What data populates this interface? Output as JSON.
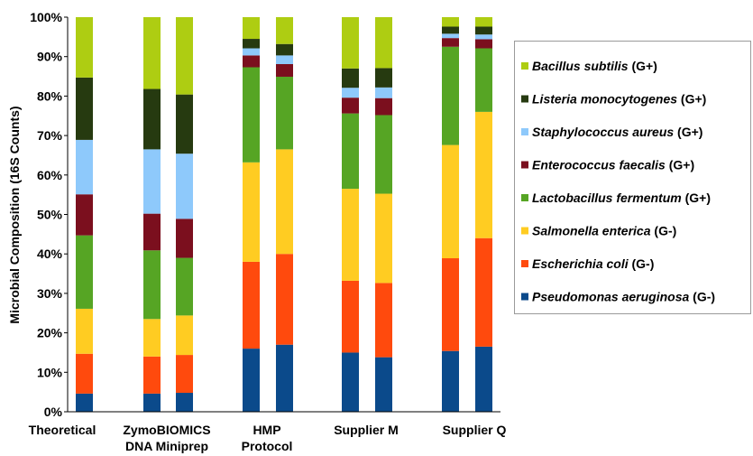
{
  "chart_data": {
    "type": "bar",
    "stacked": true,
    "ylabel": "Microbial Composition (16S Counts)",
    "ylim": [
      0,
      100
    ],
    "y_ticks": [
      "0%",
      "10%",
      "20%",
      "30%",
      "40%",
      "50%",
      "60%",
      "70%",
      "80%",
      "90%",
      "100%"
    ],
    "grid": false,
    "legend_position": "right",
    "groups": [
      {
        "label_lines": [
          "Theoretical"
        ],
        "bars": [
          "Theoretical"
        ]
      },
      {
        "label_lines": [
          "ZymoBIOMICS",
          "DNA Miniprep"
        ],
        "bars": [
          "ZymoBIOMICS DNA Miniprep 1",
          "ZymoBIOMICS DNA Miniprep 2"
        ]
      },
      {
        "label_lines": [
          "HMP",
          "Protocol"
        ],
        "bars": [
          "HMP Protocol 1",
          "HMP Protocol 2"
        ]
      },
      {
        "label_lines": [
          "Supplier M"
        ],
        "bars": [
          "Supplier M 1",
          "Supplier M 2"
        ]
      },
      {
        "label_lines": [
          "Supplier Q"
        ],
        "bars": [
          "Supplier Q 1",
          "Supplier Q 2"
        ]
      }
    ],
    "series": [
      {
        "name": "Pseudomonas aeruginosa",
        "tag": "(G-)",
        "color": "#0b4a8b",
        "values": [
          4.6,
          4.6,
          4.8,
          16.0,
          17.0,
          15.0,
          13.8,
          15.4,
          16.5
        ]
      },
      {
        "name": "Escherichia coli",
        "tag": "(G-)",
        "color": "#ff4a0d",
        "values": [
          10.1,
          9.4,
          9.6,
          22.0,
          23.0,
          18.2,
          18.8,
          23.5,
          27.5
        ]
      },
      {
        "name": "Salmonella enterica",
        "tag": "(G-)",
        "color": "#ffcc22",
        "values": [
          11.4,
          9.5,
          10.0,
          25.2,
          26.5,
          23.3,
          22.6,
          28.7,
          32.0
        ]
      },
      {
        "name": "Lactobacillus fermentum",
        "tag": "(G+)",
        "color": "#56a524",
        "values": [
          18.6,
          17.4,
          14.6,
          24.1,
          18.4,
          19.1,
          19.9,
          24.9,
          16.1
        ]
      },
      {
        "name": "Enterococcus faecalis",
        "tag": "(G+)",
        "color": "#7b0f1e",
        "values": [
          10.4,
          9.3,
          9.9,
          3.0,
          3.2,
          4.0,
          4.3,
          2.2,
          2.3
        ]
      },
      {
        "name": "Staphylococcus aureus",
        "tag": "(G+)",
        "color": "#8ec9fb",
        "values": [
          13.8,
          16.3,
          16.5,
          1.8,
          2.2,
          2.5,
          2.7,
          1.1,
          1.2
        ]
      },
      {
        "name": "Listeria monocytogenes",
        "tag": "(G+)",
        "color": "#263a10",
        "values": [
          15.8,
          15.3,
          15.0,
          2.4,
          2.9,
          4.9,
          4.9,
          1.8,
          2.0
        ]
      },
      {
        "name": "Bacillus subtilis",
        "tag": "(G+)",
        "color": "#aecd12",
        "values": [
          15.3,
          18.2,
          19.6,
          5.5,
          6.8,
          13.0,
          12.9,
          2.4,
          2.4
        ]
      }
    ]
  }
}
